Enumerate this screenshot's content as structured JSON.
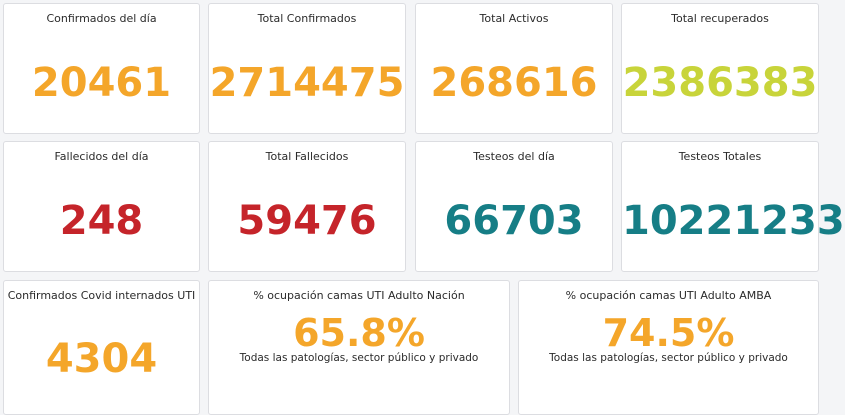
{
  "colors": {
    "orange": "#f4a62a",
    "lime": "#c8d43a",
    "red": "#c5242a",
    "teal": "#167e86"
  },
  "cards": {
    "confirmados_dia": {
      "label": "Confirmados del día",
      "value": "20461"
    },
    "total_confirmados": {
      "label": "Total Confirmados",
      "value": "2714475"
    },
    "total_activos": {
      "label": "Total Activos",
      "value": "268616"
    },
    "total_recuperados": {
      "label": "Total recuperados",
      "value": "2386383"
    },
    "fallecidos_dia": {
      "label": "Fallecidos del día",
      "value": "248"
    },
    "total_fallecidos": {
      "label": "Total Fallecidos",
      "value": "59476"
    },
    "testeos_dia": {
      "label": "Testeos del día",
      "value": "66703"
    },
    "testeos_totales": {
      "label": "Testeos Totales",
      "value": "10221233"
    },
    "internados_uti": {
      "label": "Confirmados Covid internados UTI",
      "value": "4304"
    },
    "ocupacion_nacion": {
      "label": "% ocupación camas UTI Adulto Nación",
      "value": "65.8%",
      "sublabel": "Todas las patologías, sector público y privado"
    },
    "ocupacion_amba": {
      "label": "% ocupación camas UTI Adulto AMBA",
      "value": "74.5%",
      "sublabel": "Todas las patologías, sector público y privado"
    }
  }
}
